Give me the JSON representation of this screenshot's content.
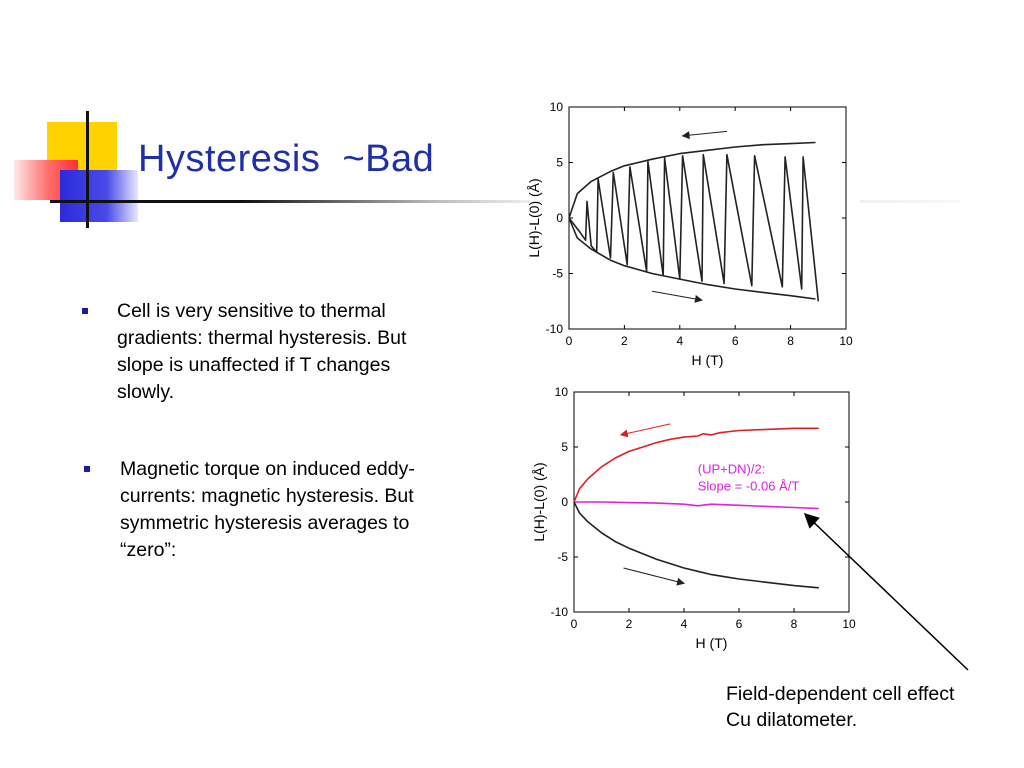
{
  "slide": {
    "title": "Hysteresis  ~Bad",
    "accent_colors": {
      "yellow": "#ffd200",
      "red": "#ff4a4a",
      "blue": "#2a2adc",
      "title": "#1f2fa8"
    },
    "bullets": [
      {
        "text": "Cell is very sensitive to thermal gradients: thermal hysteresis. But slope is unaffected if T changes slowly."
      },
      {
        "text": "Magnetic torque on induced eddy-currents: magnetic hysteresis.  But symmetric hysteresis averages to “zero”:"
      }
    ],
    "caption": [
      "Field-dependent cell effect",
      "Cu dilatometer."
    ]
  },
  "chart_data": [
    {
      "type": "line",
      "title": "",
      "xlabel": "H (T)",
      "ylabel": "L(H)-L(0) (Å)",
      "xlim": [
        0,
        10
      ],
      "ylim": [
        -10,
        10
      ],
      "xticks": [
        0,
        2,
        4,
        6,
        8,
        10
      ],
      "yticks": [
        -10,
        -5,
        0,
        5,
        10
      ],
      "grid": false,
      "series": [
        {
          "color": "#222222",
          "points": [
            [
              0,
              0
            ],
            [
              0.3,
              2.2
            ],
            [
              0.8,
              3.3
            ],
            [
              1.5,
              4.2
            ],
            [
              2,
              4.7
            ],
            [
              3,
              5.3
            ],
            [
              4,
              5.8
            ],
            [
              5,
              6.1
            ],
            [
              6,
              6.4
            ],
            [
              7,
              6.6
            ],
            [
              8,
              6.7
            ],
            [
              8.9,
              6.8
            ]
          ]
        },
        {
          "color": "#222222",
          "points": [
            [
              0,
              0
            ],
            [
              0.3,
              -1.8
            ],
            [
              0.8,
              -2.8
            ],
            [
              1.5,
              -3.8
            ],
            [
              2,
              -4.3
            ],
            [
              3,
              -5
            ],
            [
              4,
              -5.5
            ],
            [
              5,
              -6
            ],
            [
              6,
              -6.4
            ],
            [
              7,
              -6.7
            ],
            [
              8,
              -7
            ],
            [
              8.9,
              -7.3
            ]
          ]
        },
        {
          "color": "#222222",
          "points": [
            [
              0,
              0
            ],
            [
              0.4,
              -1.3
            ],
            [
              0.6,
              -2
            ],
            [
              0.65,
              1.5
            ],
            [
              0.8,
              -2.5
            ],
            [
              1.0,
              -3.1
            ],
            [
              1.05,
              3.5
            ],
            [
              1.5,
              -3.6
            ],
            [
              1.6,
              4.1
            ],
            [
              2.1,
              -4.2
            ],
            [
              2.2,
              4.6
            ],
            [
              2.8,
              -4.8
            ],
            [
              2.85,
              5.1
            ],
            [
              3.4,
              -5.2
            ],
            [
              3.45,
              5.4
            ],
            [
              4.0,
              -5.5
            ],
            [
              4.1,
              5.6
            ],
            [
              4.8,
              -5.7
            ],
            [
              4.85,
              5.7
            ],
            [
              5.6,
              -5.9
            ],
            [
              5.7,
              5.7
            ],
            [
              6.6,
              -6.1
            ],
            [
              6.7,
              5.6
            ],
            [
              7.7,
              -6.2
            ],
            [
              7.8,
              5.5
            ],
            [
              8.4,
              -6.4
            ],
            [
              8.45,
              5.5
            ],
            [
              9.0,
              -7.5
            ]
          ]
        }
      ],
      "annotations": [
        {
          "type": "arrow",
          "from": [
            5.7,
            7.8
          ],
          "to": [
            4.1,
            7.4
          ]
        },
        {
          "type": "arrow",
          "from": [
            3.0,
            -6.6
          ],
          "to": [
            4.8,
            -7.4
          ]
        }
      ]
    },
    {
      "type": "line",
      "title": "",
      "xlabel": "H (T)",
      "ylabel": "L(H)-L(0) (Å)",
      "xlim": [
        0,
        10
      ],
      "ylim": [
        -10,
        10
      ],
      "xticks": [
        0,
        2,
        4,
        6,
        8,
        10
      ],
      "yticks": [
        -10,
        -5,
        0,
        5,
        10
      ],
      "grid": false,
      "series": [
        {
          "color": "#e02020",
          "points": [
            [
              0,
              0
            ],
            [
              0.2,
              1.2
            ],
            [
              0.5,
              2.1
            ],
            [
              1,
              3.2
            ],
            [
              1.5,
              4
            ],
            [
              2,
              4.6
            ],
            [
              2.5,
              5
            ],
            [
              3,
              5.4
            ],
            [
              3.5,
              5.7
            ],
            [
              4,
              5.9
            ],
            [
              4.5,
              6
            ],
            [
              4.7,
              6.2
            ],
            [
              5,
              6.1
            ],
            [
              5.3,
              6.3
            ],
            [
              6,
              6.5
            ],
            [
              7,
              6.6
            ],
            [
              8,
              6.7
            ],
            [
              8.9,
              6.7
            ]
          ]
        },
        {
          "name": "(UP+DN)/2:",
          "color": "#e020e0",
          "points": [
            [
              0,
              0
            ],
            [
              1,
              0
            ],
            [
              2,
              -0.05
            ],
            [
              3,
              -0.1
            ],
            [
              4,
              -0.2
            ],
            [
              4.5,
              -0.35
            ],
            [
              5,
              -0.2
            ],
            [
              6,
              -0.3
            ],
            [
              7,
              -0.4
            ],
            [
              8,
              -0.5
            ],
            [
              8.9,
              -0.6
            ]
          ]
        },
        {
          "color": "#222222",
          "points": [
            [
              0,
              0
            ],
            [
              0.2,
              -1
            ],
            [
              0.5,
              -1.8
            ],
            [
              1,
              -2.8
            ],
            [
              1.5,
              -3.6
            ],
            [
              2,
              -4.2
            ],
            [
              2.5,
              -4.7
            ],
            [
              3,
              -5.2
            ],
            [
              3.5,
              -5.6
            ],
            [
              4,
              -6
            ],
            [
              4.5,
              -6.3
            ],
            [
              5,
              -6.6
            ],
            [
              5.5,
              -6.8
            ],
            [
              6,
              -7
            ],
            [
              7,
              -7.3
            ],
            [
              8,
              -7.6
            ],
            [
              8.9,
              -7.8
            ]
          ]
        }
      ],
      "annotations": [
        {
          "type": "text",
          "lines": [
            "(UP+DN)/2:",
            "Slope = -0.06 Å/T"
          ],
          "color": "#e020e0",
          "at": [
            4.5,
            2.6
          ]
        },
        {
          "type": "arrow",
          "from": [
            3.5,
            7.1
          ],
          "to": [
            1.7,
            6.1
          ],
          "color": "#e02020"
        },
        {
          "type": "arrow",
          "from": [
            1.8,
            -6.0
          ],
          "to": [
            4.0,
            -7.4
          ],
          "color": "#222222"
        }
      ]
    }
  ]
}
